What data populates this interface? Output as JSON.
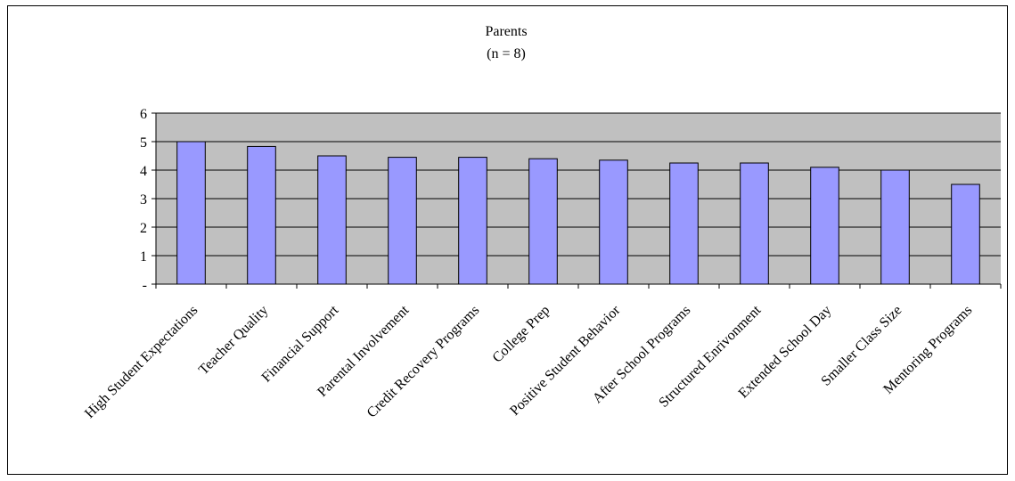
{
  "chart_data": {
    "type": "bar",
    "title": "Parents",
    "subtitle": "(n = 8)",
    "xlabel": "",
    "ylabel": "",
    "categories": [
      "High Student Expectations",
      "Teacher Quality",
      "Financial Support",
      "Parental Involvement",
      "Credit Recovery Programs",
      "College Prep",
      "Positive Student Behavior",
      "After School Programs",
      "Structured Enrivonment",
      "Extended School Day",
      "Smaller Class Size",
      "Mentoring Programs"
    ],
    "values": [
      5.0,
      4.83,
      4.5,
      4.45,
      4.45,
      4.4,
      4.35,
      4.25,
      4.25,
      4.1,
      4.0,
      3.5
    ],
    "ylim": [
      0,
      6
    ],
    "yticks": [
      "-",
      "1",
      "2",
      "3",
      "4",
      "5",
      "6"
    ],
    "grid": true,
    "legend": "none",
    "colors": {
      "bar_fill": "#9999ff",
      "plot_background": "#c0c0c0",
      "gridline": "#000000"
    }
  }
}
